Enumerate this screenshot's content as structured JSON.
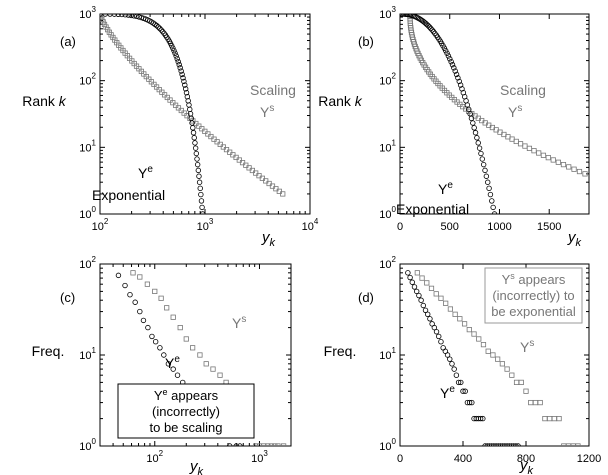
{
  "colors": {
    "exponential": "#000000",
    "scaling": "#777777",
    "axis": "#000000",
    "box_border_d": "#9a9a9a"
  },
  "chart_data": [
    {
      "panel": "(a)",
      "type": "scatter",
      "xlabel": "y",
      "xlabel_sub": "k",
      "ylabel": "Rank ",
      "ylabel_italic": "k",
      "xscale": "log",
      "yscale": "log",
      "xlim": [
        100,
        10000
      ],
      "ylim": [
        1,
        1000
      ],
      "xticks": [
        {
          "v": 100,
          "b": "10",
          "e": "2"
        },
        {
          "v": 1000,
          "b": "10",
          "e": "3"
        },
        {
          "v": 10000,
          "b": "10",
          "e": "4"
        }
      ],
      "yticks": [
        {
          "v": 1,
          "b": "10",
          "e": "0"
        },
        {
          "v": 10,
          "b": "10",
          "e": "1"
        },
        {
          "v": 100,
          "b": "10",
          "e": "2"
        },
        {
          "v": 1000,
          "b": "10",
          "e": "3"
        }
      ],
      "annotations": [
        {
          "text": "Scaling",
          "color": "#777777"
        },
        {
          "base": "Y",
          "sup": "s",
          "color": "#777777"
        },
        {
          "base": "Y",
          "sup": "e",
          "color": "#000000"
        },
        {
          "text": "Exponential",
          "color": "#000000"
        }
      ],
      "series": [
        {
          "marker": "square",
          "color": "#777777",
          "curve": "powerlaw",
          "x_start": 100,
          "x_end": 5500,
          "rank_start": 1000,
          "rank_end": 2
        },
        {
          "marker": "circle",
          "color": "#000000",
          "curve": "exponential",
          "x_start": 100,
          "x_end": 950,
          "rank_start": 1000,
          "rank_end": 1
        }
      ]
    },
    {
      "panel": "(b)",
      "type": "scatter",
      "xlabel": "y",
      "xlabel_sub": "k",
      "ylabel": "Rank ",
      "ylabel_italic": "k",
      "xscale": "linear",
      "yscale": "log",
      "xlim": [
        0,
        1900
      ],
      "ylim": [
        1,
        1000
      ],
      "xticks": [
        {
          "v": 0,
          "t": "0"
        },
        {
          "v": 500,
          "t": "500"
        },
        {
          "v": 1000,
          "t": "1000"
        },
        {
          "v": 1500,
          "t": "1500"
        }
      ],
      "yticks": [
        {
          "v": 1,
          "b": "10",
          "e": "0"
        },
        {
          "v": 10,
          "b": "10",
          "e": "1"
        },
        {
          "v": 100,
          "b": "10",
          "e": "2"
        },
        {
          "v": 1000,
          "b": "10",
          "e": "3"
        }
      ],
      "annotations": [
        {
          "text": "Scaling",
          "color": "#777777"
        },
        {
          "base": "Y",
          "sup": "s",
          "color": "#777777"
        },
        {
          "base": "Y",
          "sup": "e",
          "color": "#000000"
        },
        {
          "text": "Exponential",
          "color": "#000000"
        }
      ],
      "series": [
        {
          "marker": "square",
          "color": "#777777",
          "curve": "powerlaw",
          "x_start": 100,
          "x_end": 1860,
          "rank_start": 1000,
          "rank_end": 4
        },
        {
          "marker": "circle",
          "color": "#000000",
          "curve": "exponential",
          "x_start": 10,
          "x_end": 950,
          "rank_start": 1000,
          "rank_end": 1
        }
      ]
    },
    {
      "panel": "(c)",
      "type": "scatter",
      "xlabel": "y",
      "xlabel_sub": "k",
      "ylabel": "Freq.",
      "xscale": "log",
      "yscale": "log",
      "xlim": [
        30,
        2000
      ],
      "ylim": [
        1,
        100
      ],
      "xticks": [
        {
          "v": 100,
          "b": "10",
          "e": "2"
        },
        {
          "v": 1000,
          "b": "10",
          "e": "3"
        }
      ],
      "yticks": [
        {
          "v": 1,
          "b": "10",
          "e": "0"
        },
        {
          "v": 10,
          "b": "10",
          "e": "1"
        },
        {
          "v": 100,
          "b": "10",
          "e": "2"
        }
      ],
      "annotations": [
        {
          "base": "Y",
          "sup": "s",
          "color": "#777777"
        },
        {
          "base": "Y",
          "sup": "e",
          "color": "#000000"
        },
        {
          "box": true,
          "lines": [
            {
              "base": "Y",
              "sup": "e",
              "rest": " appears"
            },
            {
              "text": "(incorrectly)"
            },
            {
              "text": "to be scaling"
            }
          ],
          "color": "#000000"
        }
      ],
      "series": [
        {
          "marker": "square",
          "color": "#777777",
          "curve": "binned",
          "bins": [
            [
              62,
              80
            ],
            [
              72,
              72
            ],
            [
              85,
              60
            ],
            [
              100,
              50
            ],
            [
              115,
              42
            ],
            [
              130,
              33
            ],
            [
              150,
              26
            ],
            [
              175,
              20
            ],
            [
              200,
              15
            ],
            [
              230,
              12
            ],
            [
              270,
              10
            ],
            [
              310,
              8
            ],
            [
              360,
              7
            ],
            [
              420,
              6
            ],
            [
              480,
              5
            ],
            [
              560,
              4
            ],
            [
              640,
              3
            ],
            [
              760,
              2
            ],
            [
              920,
              1
            ],
            [
              1000,
              1
            ],
            [
              1100,
              1
            ],
            [
              1200,
              1
            ],
            [
              1300,
              1
            ],
            [
              1400,
              1
            ],
            [
              1500,
              1
            ],
            [
              1700,
              1
            ]
          ]
        },
        {
          "marker": "circle",
          "color": "#000000",
          "curve": "binned",
          "bins": [
            [
              45,
              75
            ],
            [
              52,
              58
            ],
            [
              58,
              46
            ],
            [
              65,
              38
            ],
            [
              72,
              30
            ],
            [
              78,
              24
            ],
            [
              86,
              20
            ],
            [
              94,
              16
            ],
            [
              102,
              14
            ],
            [
              112,
              12
            ],
            [
              122,
              10
            ],
            [
              135,
              8
            ],
            [
              150,
              7
            ],
            [
              165,
              6
            ],
            [
              185,
              5
            ],
            [
              210,
              4
            ],
            [
              250,
              3
            ],
            [
              320,
              2
            ],
            [
              520,
              1
            ],
            [
              600,
              1
            ],
            [
              650,
              1
            ]
          ]
        }
      ]
    },
    {
      "panel": "(d)",
      "type": "scatter",
      "xlabel": "y",
      "xlabel_sub": "k",
      "ylabel": "Freq.",
      "xscale": "linear",
      "yscale": "log",
      "xlim": [
        0,
        1200
      ],
      "ylim": [
        1,
        100
      ],
      "xticks": [
        {
          "v": 0,
          "t": "0"
        },
        {
          "v": 400,
          "t": "400"
        },
        {
          "v": 800,
          "t": "800"
        },
        {
          "v": 1200,
          "t": "1200"
        }
      ],
      "yticks": [
        {
          "v": 1,
          "b": "10",
          "e": "0"
        },
        {
          "v": 10,
          "b": "10",
          "e": "1"
        },
        {
          "v": 100,
          "b": "10",
          "e": "2"
        }
      ],
      "annotations": [
        {
          "base": "Y",
          "sup": "s",
          "color": "#777777"
        },
        {
          "base": "Y",
          "sup": "e",
          "color": "#000000"
        },
        {
          "box": true,
          "lines": [
            {
              "base": "Y",
              "sup": "s",
              "rest": " appears"
            },
            {
              "text": "(incorrectly) to"
            },
            {
              "text": "be exponential"
            }
          ],
          "color": "#777777"
        }
      ],
      "series": [
        {
          "marker": "square",
          "color": "#777777",
          "curve": "linear_bins",
          "x_start": 110,
          "step": 30,
          "x_end": 1130,
          "f0": 80,
          "decay": 230
        },
        {
          "marker": "circle",
          "color": "#000000",
          "curve": "linear_bins",
          "x_start": 50,
          "step": 14,
          "x_end": 760,
          "f0": 80,
          "decay": 120
        }
      ]
    }
  ]
}
